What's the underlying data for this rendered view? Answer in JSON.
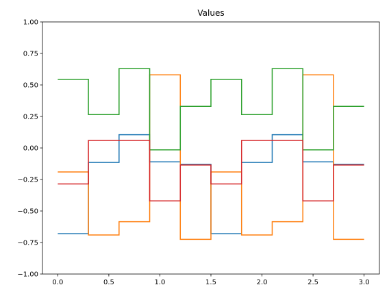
{
  "chart_data": {
    "type": "line",
    "drawstyle": "steps-post",
    "title": "Values",
    "xlabel": "",
    "ylabel": "",
    "xlim": [
      -0.15,
      3.15
    ],
    "ylim": [
      -1.0,
      1.0
    ],
    "x_ticks": [
      0.0,
      0.5,
      1.0,
      1.5,
      2.0,
      2.5,
      3.0
    ],
    "x_tick_labels": [
      "0.0",
      "0.5",
      "1.0",
      "1.5",
      "2.0",
      "2.5",
      "3.0"
    ],
    "y_ticks": [
      -1.0,
      -0.75,
      -0.5,
      -0.25,
      0.0,
      0.25,
      0.5,
      0.75,
      1.0
    ],
    "y_tick_labels": [
      "−1.00",
      "−0.75",
      "−0.50",
      "−0.25",
      "0.00",
      "0.25",
      "0.50",
      "0.75",
      "1.00"
    ],
    "grid": false,
    "legend": "none",
    "x": [
      0.0,
      0.3,
      0.6,
      0.9,
      1.2,
      1.5,
      1.8,
      2.1,
      2.4,
      2.7,
      3.0
    ],
    "series": [
      {
        "color": "#1f77b4",
        "values": [
          -0.68,
          -0.115,
          0.105,
          -0.11,
          -0.13,
          -0.68,
          -0.115,
          0.105,
          -0.11,
          -0.13,
          -0.13
        ]
      },
      {
        "color": "#ff7f0e",
        "values": [
          -0.19,
          -0.69,
          -0.585,
          0.58,
          -0.725,
          -0.19,
          -0.69,
          -0.585,
          0.58,
          -0.725,
          -0.725
        ]
      },
      {
        "color": "#2ca02c",
        "values": [
          0.545,
          0.265,
          0.63,
          -0.015,
          0.33,
          0.545,
          0.265,
          0.63,
          -0.015,
          0.33,
          0.33
        ]
      },
      {
        "color": "#d62728",
        "values": [
          -0.285,
          0.06,
          0.06,
          -0.42,
          -0.135,
          -0.285,
          0.06,
          0.06,
          -0.42,
          -0.135,
          -0.135
        ]
      }
    ]
  }
}
